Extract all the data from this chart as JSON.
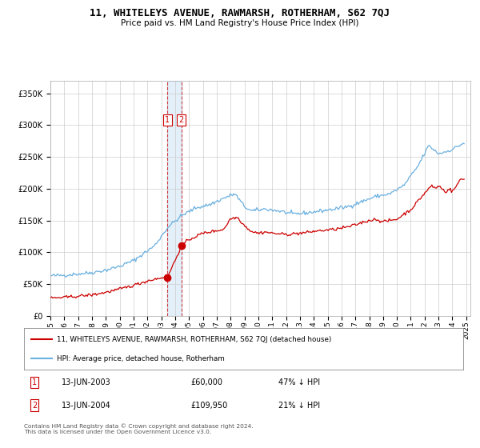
{
  "title": "11, WHITELEYS AVENUE, RAWMARSH, ROTHERHAM, S62 7QJ",
  "subtitle": "Price paid vs. HM Land Registry's House Price Index (HPI)",
  "legend_line1": "11, WHITELEYS AVENUE, RAWMARSH, ROTHERHAM, S62 7QJ (detached house)",
  "legend_line2": "HPI: Average price, detached house, Rotherham",
  "transaction1_date": "13-JUN-2003",
  "transaction1_price": 60000,
  "transaction1_label": "47% ↓ HPI",
  "transaction2_date": "13-JUN-2004",
  "transaction2_price": 109950,
  "transaction2_label": "21% ↓ HPI",
  "footer": "Contains HM Land Registry data © Crown copyright and database right 2024.\nThis data is licensed under the Open Government Licence v3.0.",
  "hpi_color": "#6ab0e0",
  "price_color": "#cc0000",
  "background_color": "#ffffff",
  "grid_color": "#cccccc",
  "ylim": [
    0,
    370000
  ],
  "xlim_start": 1995.0,
  "xlim_end": 2025.3,
  "transaction1_x": 2003.45,
  "transaction2_x": 2004.45,
  "hpi_anchors_x": [
    1995.0,
    1996.0,
    1997.0,
    1998.0,
    1999.0,
    2000.0,
    2001.0,
    2002.5,
    2003.5,
    2004.5,
    2005.5,
    2006.5,
    2007.5,
    2008.3,
    2009.0,
    2009.5,
    2010.5,
    2011.5,
    2012.5,
    2013.5,
    2014.5,
    2015.5,
    2016.5,
    2017.5,
    2018.5,
    2019.5,
    2020.5,
    2021.5,
    2022.3,
    2023.0,
    2023.5,
    2024.0,
    2024.5,
    2024.85
  ],
  "hpi_anchors_y": [
    63000,
    64000,
    66000,
    68000,
    72000,
    78000,
    87000,
    110000,
    140000,
    158000,
    170000,
    175000,
    185000,
    192000,
    172000,
    165000,
    168000,
    165000,
    160000,
    162000,
    165000,
    168000,
    172000,
    180000,
    188000,
    192000,
    205000,
    235000,
    268000,
    255000,
    258000,
    262000,
    268000,
    272000
  ],
  "price_anchors_x": [
    1995.0,
    1996.0,
    1997.0,
    1998.0,
    1999.0,
    2000.0,
    2001.0,
    2002.0,
    2003.0,
    2003.5,
    2004.45,
    2005.0,
    2006.0,
    2007.0,
    2007.5,
    2008.0,
    2008.5,
    2009.0,
    2009.5,
    2010.0,
    2010.5,
    2011.0,
    2012.0,
    2013.0,
    2013.5,
    2014.0,
    2015.0,
    2015.5,
    2016.0,
    2016.5,
    2017.0,
    2017.5,
    2018.0,
    2018.5,
    2019.0,
    2019.5,
    2020.0,
    2020.5,
    2021.0,
    2021.5,
    2022.0,
    2022.5,
    2022.8,
    2023.0,
    2023.5,
    2023.8,
    2024.0,
    2024.3,
    2024.6,
    2024.85
  ],
  "price_anchors_y": [
    28000,
    29000,
    31000,
    33000,
    37000,
    42000,
    48000,
    55000,
    60000,
    63000,
    109950,
    120000,
    130000,
    134000,
    136000,
    153000,
    155000,
    142000,
    133000,
    130000,
    132000,
    130000,
    128000,
    130000,
    131000,
    133000,
    135000,
    136000,
    138000,
    140000,
    143000,
    147000,
    150000,
    152000,
    148000,
    150000,
    152000,
    160000,
    167000,
    180000,
    193000,
    205000,
    200000,
    205000,
    195000,
    200000,
    195000,
    205000,
    215000,
    215000
  ]
}
